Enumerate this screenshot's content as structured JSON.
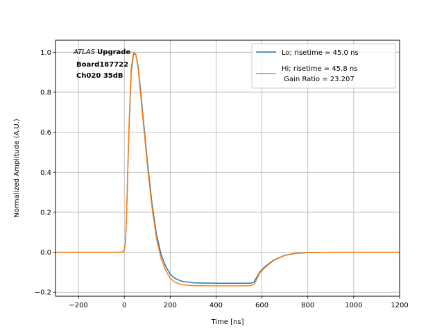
{
  "chart_data": {
    "type": "line",
    "xlabel": "Time [ns]",
    "ylabel": "Normalized Amplitude (A.U.)",
    "xlim": [
      -300,
      1200
    ],
    "ylim": [
      -0.22,
      1.06
    ],
    "xticks": [
      -200,
      0,
      200,
      400,
      600,
      800,
      1000,
      1200
    ],
    "yticks": [
      -0.2,
      0.0,
      0.2,
      0.4,
      0.6,
      0.8,
      1.0
    ],
    "xtick_labels": [
      "−200",
      "0",
      "200",
      "400",
      "600",
      "800",
      "1000",
      "1200"
    ],
    "ytick_labels": [
      "−0.2",
      "0.0",
      "0.2",
      "0.4",
      "0.6",
      "0.8",
      "1.0"
    ],
    "grid": true,
    "legend_position": "upper-right",
    "annotation": {
      "italic": "ATLAS",
      "bold_suffix": "Upgrade",
      "line2": "Board187722",
      "line3": "Ch020 35dB"
    },
    "series": [
      {
        "name": "Lo; risetime = 45.0 ns",
        "color": "#1f77b4",
        "x": [
          -300,
          -100,
          -10,
          0,
          5,
          10,
          20,
          30,
          40,
          50,
          60,
          70,
          80,
          90,
          100,
          120,
          140,
          160,
          180,
          200,
          220,
          250,
          300,
          400,
          500,
          550,
          565,
          575,
          590,
          610,
          650,
          700,
          750,
          800,
          900,
          1000,
          1100,
          1200
        ],
        "y": [
          0.0,
          0.0,
          0.0,
          0.01,
          0.05,
          0.2,
          0.6,
          0.9,
          0.99,
          0.99,
          0.93,
          0.82,
          0.7,
          0.58,
          0.46,
          0.25,
          0.09,
          -0.01,
          -0.07,
          -0.11,
          -0.13,
          -0.145,
          -0.153,
          -0.155,
          -0.155,
          -0.155,
          -0.15,
          -0.13,
          -0.1,
          -0.075,
          -0.04,
          -0.015,
          -0.005,
          -0.002,
          0.0,
          0.0,
          0.0,
          0.0
        ]
      },
      {
        "name": "Hi; risetime = 45.8 ns\n Gain Ratio = 23.207",
        "color": "#ff7f0e",
        "x": [
          -300,
          -100,
          -10,
          0,
          5,
          10,
          20,
          30,
          40,
          50,
          60,
          70,
          80,
          90,
          100,
          120,
          140,
          160,
          180,
          200,
          220,
          250,
          300,
          400,
          500,
          550,
          565,
          575,
          590,
          610,
          650,
          700,
          750,
          800,
          900,
          1000,
          1100,
          1200
        ],
        "y": [
          0.0,
          0.0,
          0.0,
          0.01,
          0.05,
          0.2,
          0.62,
          0.92,
          1.0,
          0.99,
          0.92,
          0.8,
          0.68,
          0.56,
          0.44,
          0.23,
          0.07,
          -0.03,
          -0.09,
          -0.13,
          -0.15,
          -0.162,
          -0.167,
          -0.168,
          -0.168,
          -0.167,
          -0.16,
          -0.14,
          -0.105,
          -0.08,
          -0.042,
          -0.016,
          -0.006,
          -0.002,
          0.0,
          0.0,
          0.0,
          0.0
        ]
      }
    ]
  }
}
